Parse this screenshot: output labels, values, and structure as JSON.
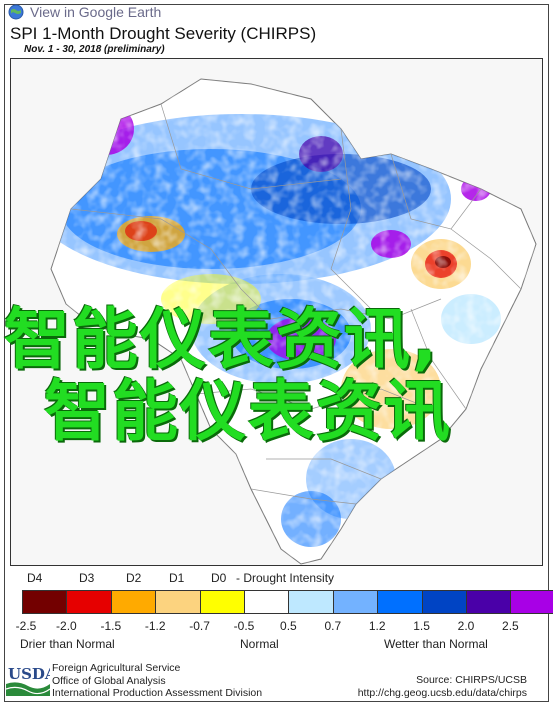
{
  "header": {
    "google_earth_link": "View in Google Earth",
    "title": "SPI 1-Month Drought Severity (CHIRPS)",
    "subtitle": "Nov. 1 - 30, 2018 (preliminary)"
  },
  "overlay": {
    "line1": "智能仪表资讯,",
    "line2": "智能仪表资讯"
  },
  "legend": {
    "classes": [
      "D4",
      "D3",
      "D2",
      "D1",
      "D0"
    ],
    "drought_intensity_label": "- Drought Intensity",
    "colors": [
      "#730000",
      "#e60000",
      "#ffaa00",
      "#fcd37f",
      "#ffff00",
      "#ffffff",
      "#bee8ff",
      "#73b2ff",
      "#0070ff",
      "#0044c4",
      "#4a00a8",
      "#a800e6"
    ],
    "ticks": [
      "-2.5",
      "-2.0",
      "-1.5",
      "-1.2",
      "-0.7",
      "-0.5",
      "0.5",
      "0.7",
      "1.2",
      "1.5",
      "2.0",
      "2.5"
    ],
    "drier_label": "Drier than Normal",
    "normal_label": "Normal",
    "wetter_label": "Wetter than Normal"
  },
  "footer": {
    "logo_text": "USDA",
    "agency_line1": "Foreign Agricultural Service",
    "agency_line2": "Office of Global Analysis",
    "agency_line3": "International Production Assessment Division",
    "source_line1": "Source: CHIRPS/UCSB",
    "source_line2": "http://chg.geog.ucsb.edu/data/chirps"
  }
}
